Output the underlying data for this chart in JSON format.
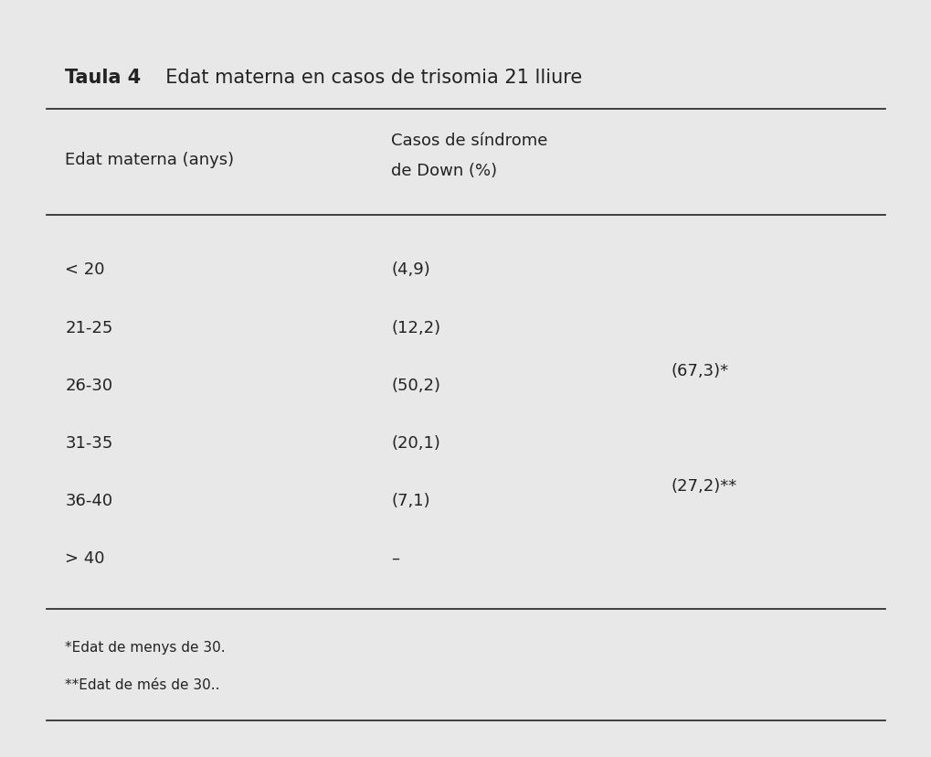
{
  "title_bold": "Taula 4",
  "title_rest": "  Edat materna en casos de trisomia 21 lliure",
  "col1_header": "Edat materna (anys)",
  "col2_header_line1": "Casos de síndrome",
  "col2_header_line2": "de Down (%)",
  "rows": [
    {
      "age": "< 20",
      "value": "(4,9)",
      "group": null
    },
    {
      "age": "21-25",
      "value": "(12,2)",
      "group": null
    },
    {
      "age": "26-30",
      "value": "(50,2)",
      "group": null
    },
    {
      "age": "31-35",
      "value": "(20,1)",
      "group": null
    },
    {
      "age": "36-40",
      "value": "(7,1)",
      "group": null
    },
    {
      "age": "> 40",
      "value": "–",
      "group": null
    }
  ],
  "group1_label": "(67,3)*",
  "group1_rows": [
    1,
    2
  ],
  "group2_label": "(27,2)**",
  "group2_rows": [
    3,
    4
  ],
  "footnote1": "*Edat de menys de 30.",
  "footnote2": "**Edat de més de 30..",
  "bg_color": "#e8e8e8",
  "text_color": "#222222",
  "title_fontsize": 15,
  "header_fontsize": 13,
  "body_fontsize": 13,
  "footnote_fontsize": 11
}
